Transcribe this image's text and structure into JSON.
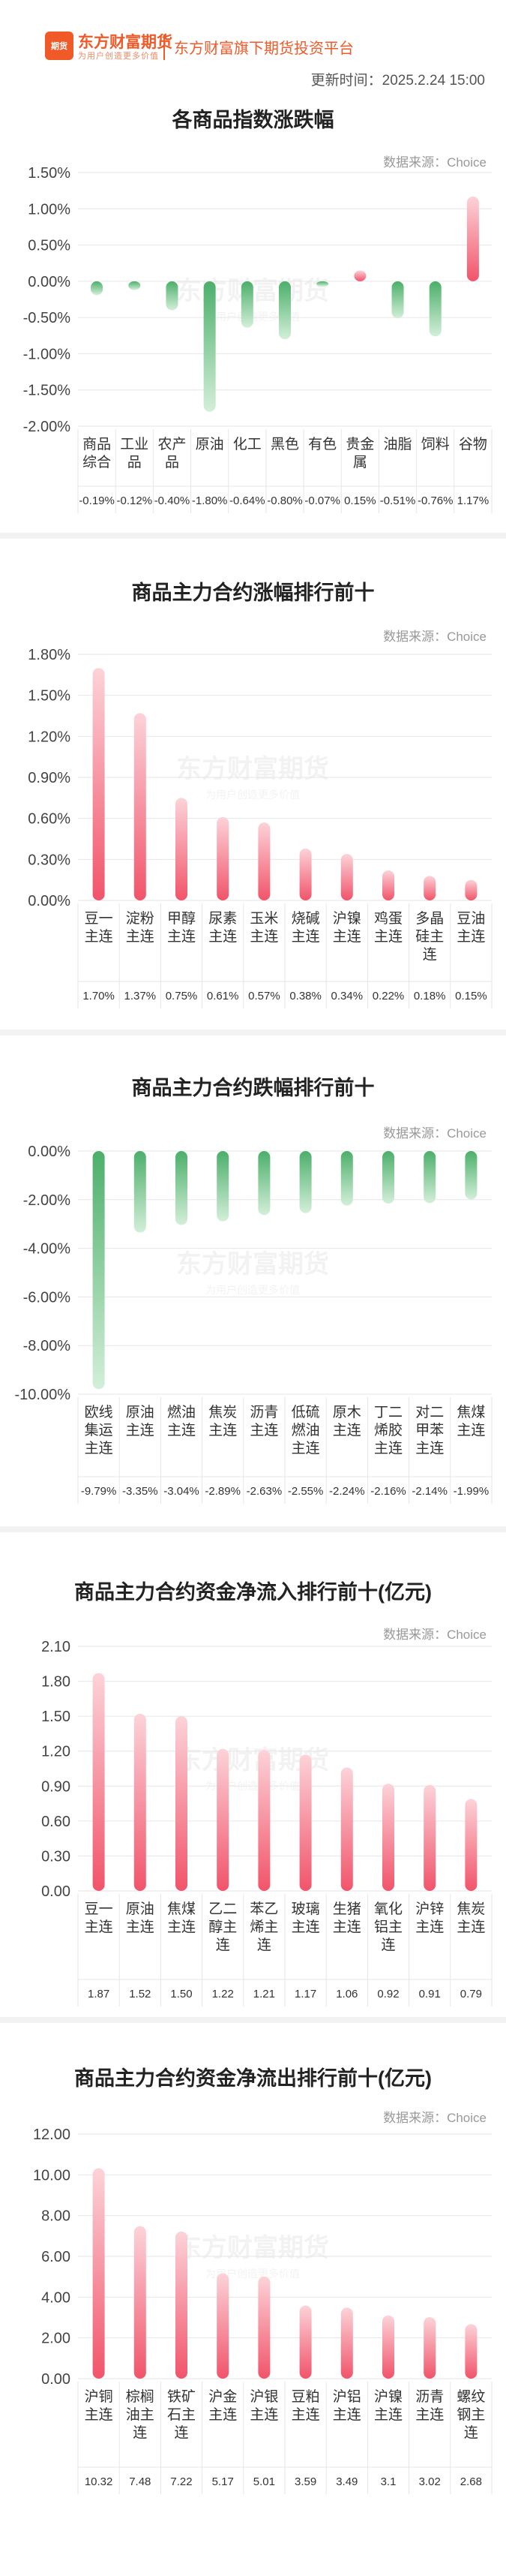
{
  "header": {
    "logo_badge": "期货",
    "logo_name": "东方财富期货",
    "logo_slogan": "为用户创造更多价值",
    "tagline": "东方财富旗下期货投资平台",
    "update_time": "更新时间：2025.2.24 15:00"
  },
  "watermark": {
    "name": "东方财富期货",
    "slogan": "为用户创造更多价值"
  },
  "colors": {
    "up": "#f1546a",
    "up_light": "#fcd3d9",
    "down": "#4caf6a",
    "down_light": "#d3efd9",
    "grid": "#e6e6e6"
  },
  "chart_data": [
    {
      "type": "bar",
      "title": "各商品指数涨跌幅",
      "source": "数据来源：Choice",
      "categories": [
        "商品综合",
        "工业品",
        "农产品",
        "原油",
        "化工",
        "黑色",
        "有色",
        "贵金属",
        "油脂",
        "饲料",
        "谷物"
      ],
      "values": [
        -0.19,
        -0.12,
        -0.4,
        -1.8,
        -0.64,
        -0.8,
        -0.07,
        0.15,
        -0.51,
        -0.76,
        1.17
      ],
      "value_labels": [
        "-0.19%",
        "-0.12%",
        "-0.40%",
        "-1.80%",
        "-0.64%",
        "-0.80%",
        "-0.07%",
        "0.15%",
        "-0.51%",
        "-0.76%",
        "1.17%"
      ],
      "yticks": [
        "1.50%",
        "1.00%",
        "0.50%",
        "0.00%",
        "-0.50%",
        "-1.00%",
        "-1.50%",
        "-2.00%"
      ],
      "ylim": [
        -2.0,
        1.5
      ]
    },
    {
      "type": "bar",
      "title": "商品主力合约涨幅排行前十",
      "source": "数据来源：Choice",
      "categories": [
        "豆一主连",
        "淀粉主连",
        "甲醇主连",
        "尿素主连",
        "玉米主连",
        "烧碱主连",
        "沪镍主连",
        "鸡蛋主连",
        "多晶硅主连",
        "豆油主连"
      ],
      "values": [
        1.7,
        1.37,
        0.75,
        0.61,
        0.57,
        0.38,
        0.34,
        0.22,
        0.18,
        0.15
      ],
      "value_labels": [
        "1.70%",
        "1.37%",
        "0.75%",
        "0.61%",
        "0.57%",
        "0.38%",
        "0.34%",
        "0.22%",
        "0.18%",
        "0.15%"
      ],
      "yticks": [
        "1.80%",
        "1.50%",
        "1.20%",
        "0.90%",
        "0.60%",
        "0.30%",
        "0.00%"
      ],
      "ylim": [
        0,
        1.8
      ]
    },
    {
      "type": "bar",
      "title": "商品主力合约跌幅排行前十",
      "source": "数据来源：Choice",
      "categories": [
        "欧线集运主连",
        "原油主连",
        "燃油主连",
        "焦炭主连",
        "沥青主连",
        "低硫燃油主连",
        "原木主连",
        "丁二烯胶主连",
        "对二甲苯主连",
        "焦煤主连"
      ],
      "values": [
        -9.79,
        -3.35,
        -3.04,
        -2.89,
        -2.63,
        -2.55,
        -2.24,
        -2.16,
        -2.14,
        -1.99
      ],
      "value_labels": [
        "-9.79%",
        "-3.35%",
        "-3.04%",
        "-2.89%",
        "-2.63%",
        "-2.55%",
        "-2.24%",
        "-2.16%",
        "-2.14%",
        "-1.99%"
      ],
      "yticks": [
        "0.00%",
        "-2.00%",
        "-4.00%",
        "-6.00%",
        "-8.00%",
        "-10.00%"
      ],
      "ylim": [
        -10.0,
        0
      ]
    },
    {
      "type": "bar",
      "title": "商品主力合约资金净流入排行前十(亿元)",
      "source": "数据来源：Choice",
      "categories": [
        "豆一主连",
        "原油主连",
        "焦煤主连",
        "乙二醇主连",
        "苯乙烯主连",
        "玻璃主连",
        "生猪主连",
        "氧化铝主连",
        "沪锌主连",
        "焦炭主连"
      ],
      "values": [
        1.87,
        1.52,
        1.5,
        1.22,
        1.21,
        1.17,
        1.06,
        0.92,
        0.91,
        0.79
      ],
      "value_labels": [
        "1.87",
        "1.52",
        "1.50",
        "1.22",
        "1.21",
        "1.17",
        "1.06",
        "0.92",
        "0.91",
        "0.79"
      ],
      "yticks": [
        "2.10",
        "1.80",
        "1.50",
        "1.20",
        "0.90",
        "0.60",
        "0.30",
        "0.00"
      ],
      "ylim": [
        0,
        2.1
      ]
    },
    {
      "type": "bar",
      "title": "商品主力合约资金净流出排行前十(亿元)",
      "source": "数据来源：Choice",
      "categories": [
        "沪铜主连",
        "棕榈油主连",
        "铁矿石主连",
        "沪金主连",
        "沪银主连",
        "豆粕主连",
        "沪铝主连",
        "沪镍主连",
        "沥青主连",
        "螺纹钢主连"
      ],
      "values": [
        10.32,
        7.48,
        7.22,
        5.17,
        5.01,
        3.59,
        3.49,
        3.1,
        3.02,
        2.68
      ],
      "value_labels": [
        "10.32",
        "7.48",
        "7.22",
        "5.17",
        "5.01",
        "3.59",
        "3.49",
        "3.1",
        "3.02",
        "2.68"
      ],
      "yticks": [
        "12.00",
        "10.00",
        "8.00",
        "6.00",
        "4.00",
        "2.00",
        "0.00"
      ],
      "ylim": [
        0,
        12
      ]
    }
  ]
}
